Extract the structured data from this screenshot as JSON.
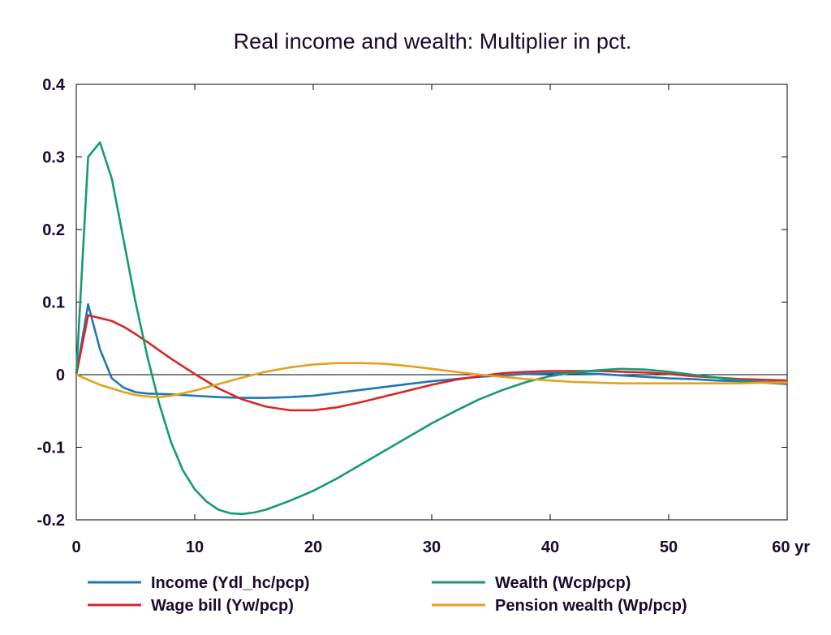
{
  "chart_data": {
    "type": "line",
    "title": "Real income and wealth: Multiplier in pct.",
    "xlim": [
      0,
      60
    ],
    "ylim": [
      -0.2,
      0.4
    ],
    "x_ticks": [
      0,
      10,
      20,
      30,
      40,
      50,
      60
    ],
    "x_tick_labels": [
      "0",
      "10",
      "20",
      "30",
      "40",
      "50",
      "60 yr"
    ],
    "y_ticks": [
      0.4,
      0.3,
      0.2,
      0.1,
      0,
      -0.1,
      -0.2
    ],
    "y_tick_labels": [
      "0.4",
      "0.3",
      "0.2",
      "0.1",
      "0",
      "-0.1",
      "-0.2"
    ],
    "grid": false,
    "legend_position": "bottom",
    "series": [
      {
        "name": "Income (Ydl_hc/pcp)",
        "color": "#1f77b4",
        "x": [
          0,
          1,
          2,
          3,
          4,
          5,
          6,
          8,
          10,
          12,
          14,
          16,
          18,
          20,
          22,
          24,
          26,
          28,
          30,
          32,
          34,
          36,
          38,
          40,
          42,
          44,
          46,
          48,
          50,
          52,
          54,
          56,
          58,
          60
        ],
        "y": [
          0,
          0.097,
          0.035,
          -0.005,
          -0.018,
          -0.024,
          -0.026,
          -0.027,
          -0.029,
          -0.031,
          -0.032,
          -0.032,
          -0.031,
          -0.029,
          -0.025,
          -0.021,
          -0.017,
          -0.013,
          -0.009,
          -0.006,
          -0.003,
          -0.001,
          0.001,
          0.002,
          0.002,
          0.001,
          -0.001,
          -0.003,
          -0.005,
          -0.006,
          -0.008,
          -0.009,
          -0.01,
          -0.011
        ]
      },
      {
        "name": "Wage bill (Yw/pcp)",
        "color": "#d62728",
        "x": [
          0,
          1,
          2,
          3,
          4,
          5,
          6,
          8,
          10,
          12,
          14,
          16,
          18,
          20,
          22,
          24,
          26,
          28,
          30,
          32,
          34,
          36,
          38,
          40,
          42,
          44,
          46,
          48,
          50,
          52,
          54,
          56,
          58,
          60
        ],
        "y": [
          0,
          0.082,
          0.078,
          0.074,
          0.066,
          0.056,
          0.045,
          0.022,
          0.001,
          -0.019,
          -0.034,
          -0.044,
          -0.049,
          -0.049,
          -0.045,
          -0.038,
          -0.03,
          -0.022,
          -0.014,
          -0.007,
          -0.002,
          0.002,
          0.004,
          0.005,
          0.005,
          0.005,
          0.004,
          0.003,
          0.001,
          -0.002,
          -0.004,
          -0.006,
          -0.007,
          -0.008
        ]
      },
      {
        "name": "Wealth (Wcp/pcp)",
        "color": "#159a77",
        "x": [
          0,
          1,
          2,
          3,
          4,
          5,
          6,
          7,
          8,
          9,
          10,
          11,
          12,
          13,
          14,
          15,
          16,
          18,
          20,
          22,
          24,
          26,
          28,
          30,
          32,
          34,
          36,
          38,
          40,
          42,
          44,
          46,
          48,
          50,
          52,
          54,
          56,
          58,
          60
        ],
        "y": [
          0,
          0.3,
          0.32,
          0.27,
          0.185,
          0.1,
          0.025,
          -0.04,
          -0.093,
          -0.132,
          -0.158,
          -0.175,
          -0.186,
          -0.191,
          -0.192,
          -0.19,
          -0.186,
          -0.174,
          -0.16,
          -0.143,
          -0.124,
          -0.105,
          -0.086,
          -0.067,
          -0.05,
          -0.034,
          -0.021,
          -0.01,
          -0.002,
          0.003,
          0.006,
          0.008,
          0.007,
          0.004,
          0.0,
          -0.004,
          -0.008,
          -0.011,
          -0.013
        ]
      },
      {
        "name": "Pension wealth (Wp/pcp)",
        "color": "#e3a21a",
        "x": [
          0,
          1,
          2,
          3,
          4,
          5,
          6,
          7,
          8,
          10,
          12,
          14,
          16,
          18,
          20,
          22,
          24,
          26,
          28,
          30,
          32,
          34,
          36,
          38,
          40,
          42,
          44,
          46,
          48,
          50,
          52,
          54,
          56,
          58,
          60
        ],
        "y": [
          0,
          -0.007,
          -0.014,
          -0.019,
          -0.024,
          -0.028,
          -0.03,
          -0.031,
          -0.029,
          -0.022,
          -0.013,
          -0.004,
          0.004,
          0.01,
          0.014,
          0.016,
          0.016,
          0.015,
          0.012,
          0.008,
          0.004,
          0.0,
          -0.003,
          -0.006,
          -0.008,
          -0.01,
          -0.011,
          -0.012,
          -0.012,
          -0.012,
          -0.012,
          -0.012,
          -0.012,
          -0.011,
          -0.011
        ]
      }
    ],
    "legend": [
      {
        "series": 0,
        "column": 0,
        "row": 0
      },
      {
        "series": 2,
        "column": 1,
        "row": 0
      },
      {
        "series": 1,
        "column": 0,
        "row": 1
      },
      {
        "series": 3,
        "column": 1,
        "row": 1
      }
    ]
  }
}
